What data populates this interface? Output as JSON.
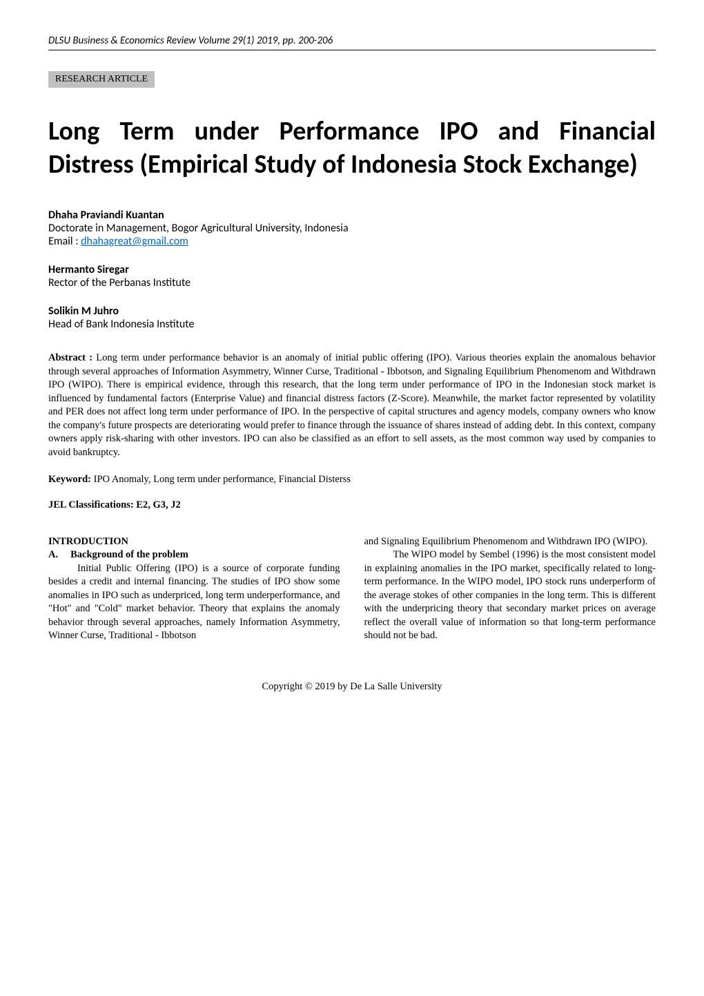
{
  "header": {
    "journal_line": "DLSU Business & Economics Review Volume 29(1) 2019, pp. 200-206",
    "article_type": "RESEARCH ARTICLE"
  },
  "title": "Long Term under Performance IPO and Financial Distress (Empirical Study of Indonesia Stock Exchange)",
  "authors": [
    {
      "name": "Dhaha Praviandi Kuantan",
      "affiliation": "Doctorate in Management, Bogor Agricultural University, Indonesia",
      "email_prefix": "Email : ",
      "email": "dhahagreat@gmail.com"
    },
    {
      "name": "Hermanto Siregar",
      "affiliation": "Rector of the Perbanas Institute"
    },
    {
      "name": "Solikin M Juhro",
      "affiliation": "Head of Bank Indonesia Institute"
    }
  ],
  "abstract": {
    "label": "Abstract : ",
    "text": "Long term under performance behavior is an anomaly of initial public offering (IPO). Various theories explain the anomalous behavior through several approaches of Information Asymmetry, Winner Curse, Traditional - Ibbotson, and Signaling Equilibrium Phenomenom and Withdrawn IPO (WIPO). There is empirical evidence, through this research, that the long term under performance of IPO in the Indonesian stock market is influenced by fundamental factors (Enterprise Value) and financial distress factors (Z-Score). Meanwhile, the market factor represented by volatility and PER does not affect long term under performance of IPO. In the perspective of capital structures and agency models, company owners who know the company's future prospects are deteriorating would prefer to finance through the issuance of shares instead of adding debt. In this context, company owners apply risk-sharing with other investors. IPO can also be classified as an effort to sell assets, as the most common way used by companies to avoid bankruptcy."
  },
  "keywords": {
    "label": "Keyword: ",
    "text": "IPO Anomaly, Long term under performance, Financial Disterss"
  },
  "jel": {
    "label": "JEL Classifications: ",
    "codes": "E2, G3, J2"
  },
  "body": {
    "introduction_heading": "INTRODUCTION",
    "subsection_letter": "A.",
    "subsection_title": "Background of the problem",
    "col1_para": "Initial Public Offering (IPO) is a source of corporate funding besides a credit and internal financing. The studies of IPO show some anomalies in IPO such as underpriced, long term underperformance, and \"Hot\" and \"Cold\" market behavior. Theory that explains the anomaly behavior through several approaches, namely Information Asymmetry, Winner Curse, Traditional - Ibbotson",
    "col2_para1": "and Signaling Equilibrium Phenomenom and Withdrawn IPO (WIPO).",
    "col2_para2": "The WIPO model by Sembel (1996) is the most consistent model in explaining anomalies in the IPO market, specifically related to long-term performance. In the WIPO model, IPO stock runs underperform of the average stokes of other companies in the long term. This is different with the underpricing theory that secondary market prices on average reflect the overall value of information so that long-term performance should not be bad."
  },
  "footer": {
    "copyright": "Copyright © 2019 by De La Salle University"
  },
  "colors": {
    "badge_bg": "#bfbfbf",
    "link_color": "#0563c1",
    "text_color": "#000000",
    "background": "#ffffff"
  }
}
